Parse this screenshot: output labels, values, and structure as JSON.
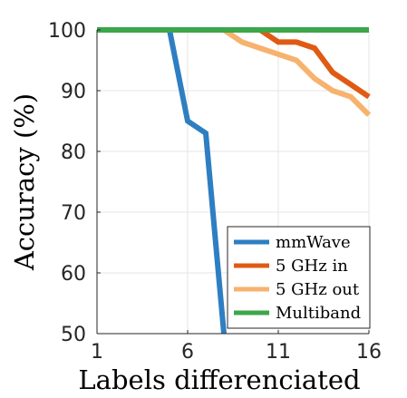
{
  "chart_data": {
    "type": "line",
    "xlabel": "Labels differenciated",
    "ylabel": "Accuracy (%)",
    "xlim": [
      1,
      16
    ],
    "ylim": [
      50,
      100
    ],
    "xticks": [
      1,
      6,
      11,
      16
    ],
    "yticks": [
      50,
      60,
      70,
      80,
      90,
      100
    ],
    "grid": true,
    "legend_position": "bottom-right",
    "series": [
      {
        "name": "mmWave",
        "color": "#2E7EC2",
        "x": [
          1,
          2,
          3,
          4,
          5,
          6,
          7,
          8
        ],
        "y": [
          100,
          100,
          100,
          100,
          100,
          85,
          83,
          50
        ]
      },
      {
        "name": "5 GHz in",
        "color": "#E05A14",
        "x": [
          1,
          2,
          3,
          4,
          5,
          6,
          7,
          8,
          9,
          10,
          11,
          12,
          13,
          14,
          15,
          16
        ],
        "y": [
          100,
          100,
          100,
          100,
          100,
          100,
          100,
          100,
          100,
          100,
          98,
          98,
          97,
          93,
          91,
          89
        ]
      },
      {
        "name": "5 GHz out",
        "color": "#F7B26E",
        "x": [
          1,
          2,
          3,
          4,
          5,
          6,
          7,
          8,
          9,
          10,
          11,
          12,
          13,
          14,
          15,
          16
        ],
        "y": [
          100,
          100,
          100,
          100,
          100,
          100,
          100,
          100,
          98,
          97,
          96,
          95,
          92,
          90,
          89,
          86
        ]
      },
      {
        "name": "Multiband",
        "color": "#3CA64A",
        "x": [
          1,
          2,
          3,
          4,
          5,
          6,
          7,
          8,
          9,
          10,
          11,
          12,
          13,
          14,
          15,
          16
        ],
        "y": [
          100,
          100,
          100,
          100,
          100,
          100,
          100,
          100,
          100,
          100,
          100,
          100,
          100,
          100,
          100,
          100
        ]
      }
    ]
  }
}
